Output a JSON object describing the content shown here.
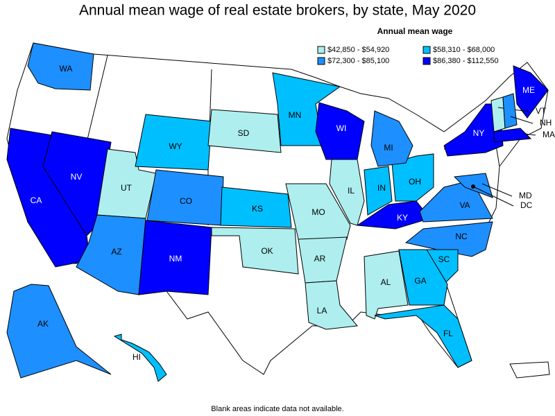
{
  "title": "Annual mean wage of real estate brokers, by state, May 2020",
  "legend": {
    "title": "Annual mean wage",
    "items": [
      {
        "label": "$42,850 - $54,920",
        "color": "#aeeeee"
      },
      {
        "label": "$58,310 - $68,000",
        "color": "#00bfff"
      },
      {
        "label": "$72,300 - $85,100",
        "color": "#1e8fff"
      },
      {
        "label": "$86,380 - $112,550",
        "color": "#0000ff"
      }
    ]
  },
  "states": [
    {
      "label": "WA",
      "color": "#1e8fff"
    },
    {
      "label": "CA",
      "color": "#0000ff"
    },
    {
      "label": "NV",
      "color": "#0000ff"
    },
    {
      "label": "UT",
      "color": "#aeeeee"
    },
    {
      "label": "AZ",
      "color": "#1e8fff"
    },
    {
      "label": "NM",
      "color": "#0000ff"
    },
    {
      "label": "CO",
      "color": "#1e8fff"
    },
    {
      "label": "WY",
      "color": "#00bfff"
    },
    {
      "label": "SD",
      "color": "#aeeeee"
    },
    {
      "label": "KS",
      "color": "#00bfff"
    },
    {
      "label": "OK",
      "color": "#aeeeee"
    },
    {
      "label": "MO",
      "color": "#aeeeee"
    },
    {
      "label": "AR",
      "color": "#aeeeee"
    },
    {
      "label": "LA",
      "color": "#aeeeee"
    },
    {
      "label": "MN",
      "color": "#00bfff"
    },
    {
      "label": "WI",
      "color": "#0000ff"
    },
    {
      "label": "IL",
      "color": "#aeeeee"
    },
    {
      "label": "IN",
      "color": "#00bfff"
    },
    {
      "label": "OH",
      "color": "#00bfff"
    },
    {
      "label": "MI",
      "color": "#1e8fff"
    },
    {
      "label": "KY",
      "color": "#0000ff"
    },
    {
      "label": "VA",
      "color": "#1e8fff"
    },
    {
      "label": "NC",
      "color": "#1e8fff"
    },
    {
      "label": "SC",
      "color": "#00bfff"
    },
    {
      "label": "GA",
      "color": "#00bfff"
    },
    {
      "label": "AL",
      "color": "#aeeeee"
    },
    {
      "label": "FL",
      "color": "#00bfff"
    },
    {
      "label": "NY",
      "color": "#0000ff"
    },
    {
      "label": "ME",
      "color": "#0000ff"
    },
    {
      "label": "VT",
      "color": "#aeeeee"
    },
    {
      "label": "NH",
      "color": "#1e8fff"
    },
    {
      "label": "MA",
      "color": "#0000ff"
    },
    {
      "label": "MD",
      "color": "#1e8fff"
    },
    {
      "label": "DC",
      "color": "#0000ff"
    },
    {
      "label": "AK",
      "color": "#1e8fff"
    },
    {
      "label": "HI",
      "color": "#00bfff"
    }
  ],
  "footnote": "Blank areas indicate data not available."
}
